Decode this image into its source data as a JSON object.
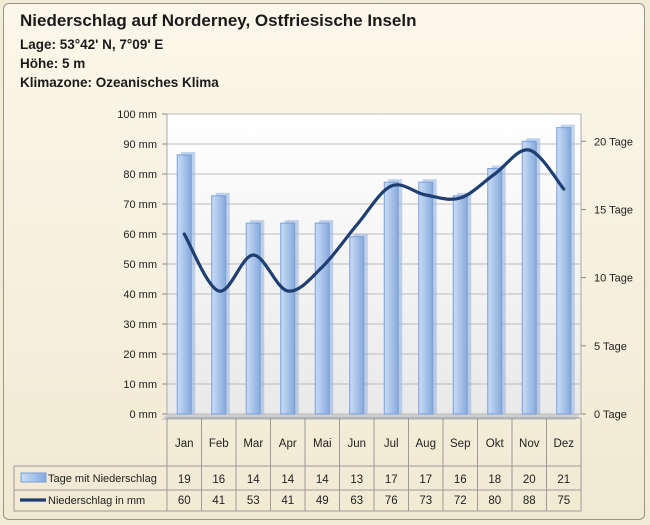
{
  "header": {
    "title": "Niederschlag auf Norderney, Ostfriesische Inseln",
    "lage": "Lage: 53°42' N, 7°09' E",
    "hoehe": "Höhe: 5 m",
    "klima": "Klimazone: Ozeanisches Klima"
  },
  "chart_data": {
    "type": "bar",
    "categories": [
      "Jan",
      "Feb",
      "Mar",
      "Apr",
      "Mai",
      "Jun",
      "Jul",
      "Aug",
      "Sep",
      "Okt",
      "Nov",
      "Dez"
    ],
    "series": [
      {
        "name": "Tage mit Niederschlag",
        "type": "bar",
        "axis": "right",
        "values": [
          19,
          16,
          14,
          14,
          14,
          13,
          17,
          17,
          16,
          18,
          20,
          21
        ]
      },
      {
        "name": "Niederschlag in mm",
        "type": "line",
        "axis": "left",
        "values": [
          60,
          41,
          53,
          41,
          49,
          63,
          76,
          73,
          72,
          80,
          88,
          75
        ]
      }
    ],
    "y_left": {
      "min": 0,
      "max": 100,
      "step": 10,
      "tick_labels": [
        "0 mm",
        "10 mm",
        "20 mm",
        "30 mm",
        "40 mm",
        "50 mm",
        "60 mm",
        "70 mm",
        "80 mm",
        "90 mm",
        "100 mm"
      ]
    },
    "y_right": {
      "min": 0,
      "max": 22,
      "tick_values": [
        0,
        5,
        10,
        15,
        20
      ],
      "tick_labels": [
        "0 Tage",
        "5 Tage",
        "10 Tage",
        "15 Tage",
        "20 Tage"
      ]
    },
    "grid": true,
    "legend": "bottom data table"
  },
  "colors": {
    "bar_fill": "#a9c4ea",
    "bar_edge": "#7a9ed6",
    "line": "#1f3f73",
    "grid": "#bdbdbd"
  }
}
